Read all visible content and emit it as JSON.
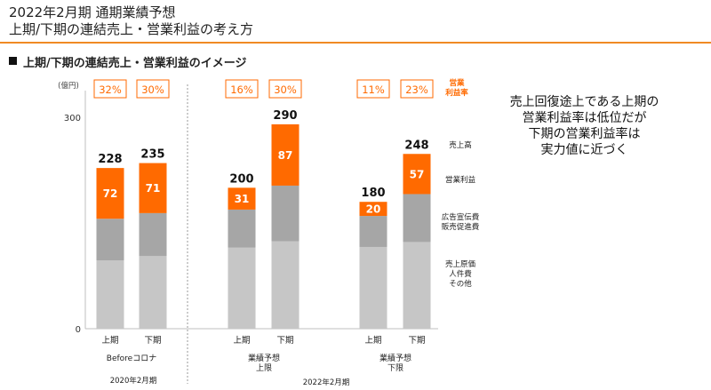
{
  "header": {
    "title_line1": "2022年2月期 通期業績予想",
    "title_line2": "上期/下期の連結売上・営業利益の考え方"
  },
  "section": {
    "subtitle": "上期/下期の連結売上・営業利益のイメージ"
  },
  "message": {
    "lines": [
      "売上回復途上である上期の",
      "営業利益率は低位だが",
      "下期の営業利益率は",
      "実力値に近づく"
    ]
  },
  "colors": {
    "cost": "#c6c6c6",
    "ad": "#a6a6a6",
    "profit": "#ff6a00",
    "margin_box": "#ff6a00",
    "accent_line": "#f08a24"
  },
  "chart_data": {
    "type": "bar",
    "stacked": true,
    "unit_label": "(億円)",
    "ylim": [
      0,
      300
    ],
    "yticks": [
      0,
      300
    ],
    "margin_header": [
      "営業",
      "利益率"
    ],
    "legend": {
      "sales": "売上高",
      "profit": "営業利益",
      "ad": [
        "広告宣伝費",
        "販売促進費"
      ],
      "cost": [
        "売上原価",
        "人件費",
        "その他"
      ]
    },
    "categories": [
      "上期",
      "下期",
      "上期",
      "下期",
      "上期",
      "下期"
    ],
    "groups": [
      {
        "label": [
          "Beforeコロナ"
        ],
        "period": "2020年2月期"
      },
      {
        "label": [
          "業績予想",
          "上限"
        ],
        "period": "2022年2月期"
      },
      {
        "label": [
          "業績予想",
          "下限"
        ],
        "period": ""
      }
    ],
    "series": [
      {
        "name": "売上原価・人件費・その他",
        "values": [
          97,
          103,
          115,
          124,
          116,
          123
        ]
      },
      {
        "name": "広告宣伝費・販売促進費",
        "values": [
          59,
          61,
          54,
          79,
          44,
          68
        ]
      },
      {
        "name": "営業利益",
        "values": [
          72,
          71,
          31,
          87,
          20,
          57
        ]
      }
    ],
    "totals": [
      228,
      235,
      200,
      290,
      180,
      248
    ],
    "operating_margin": [
      "32%",
      "30%",
      "16%",
      "30%",
      "11%",
      "23%"
    ]
  }
}
